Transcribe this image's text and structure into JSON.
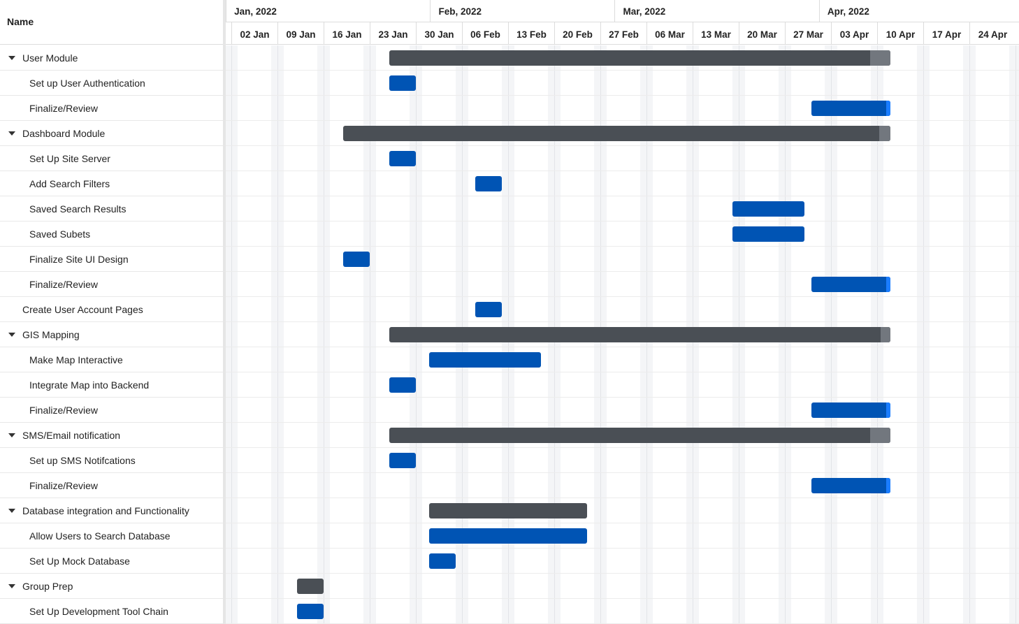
{
  "tree": {
    "header": "Name",
    "rows": [
      {
        "label": "User Module",
        "level": 0,
        "collapsible": true
      },
      {
        "label": "Set up User Authentication",
        "level": 1
      },
      {
        "label": "Finalize/Review",
        "level": 1
      },
      {
        "label": "Dashboard Module",
        "level": 0,
        "collapsible": true
      },
      {
        "label": "Set Up Site Server",
        "level": 1
      },
      {
        "label": "Add Search Filters",
        "level": 1
      },
      {
        "label": "Saved Search Results",
        "level": 1
      },
      {
        "label": "Saved Subets",
        "level": 1
      },
      {
        "label": "Finalize Site UI Design",
        "level": 1
      },
      {
        "label": "Finalize/Review",
        "level": 1
      },
      {
        "label": "Create User Account Pages",
        "level": 0,
        "collapsible": false
      },
      {
        "label": "GIS Mapping",
        "level": 0,
        "collapsible": true
      },
      {
        "label": "Make Map Interactive",
        "level": 1
      },
      {
        "label": "Integrate Map into Backend",
        "level": 1
      },
      {
        "label": "Finalize/Review",
        "level": 1
      },
      {
        "label": "SMS/Email notification",
        "level": 0,
        "collapsible": true
      },
      {
        "label": "Set up SMS Notifcations",
        "level": 1
      },
      {
        "label": "Finalize/Review",
        "level": 1
      },
      {
        "label": "Database integration and Functionality",
        "level": 0,
        "collapsible": true
      },
      {
        "label": "Allow Users to Search Database",
        "level": 1
      },
      {
        "label": "Set Up Mock Database",
        "level": 1
      },
      {
        "label": "Group Prep",
        "level": 0,
        "collapsible": true
      },
      {
        "label": "Set Up Development Tool Chain",
        "level": 1
      }
    ]
  },
  "timeline": {
    "months": [
      {
        "label": "Jan, 2022",
        "from_week": -0.12,
        "to_week": 4.31
      },
      {
        "label": "Feb, 2022",
        "from_week": 4.31,
        "to_week": 8.31
      },
      {
        "label": "Mar, 2022",
        "from_week": 8.31,
        "to_week": 12.74
      },
      {
        "label": "Apr, 2022",
        "from_week": 12.74,
        "to_week": 17.5
      }
    ],
    "weeks": [
      "02 Jan",
      "09 Jan",
      "16 Jan",
      "23 Jan",
      "30 Jan",
      "06 Feb",
      "13 Feb",
      "20 Feb",
      "27 Feb",
      "06 Mar",
      "13 Mar",
      "20 Mar",
      "27 Mar",
      "03 Apr",
      "10 Apr",
      "17 Apr",
      "24 Apr"
    ]
  },
  "bars": [
    {
      "row": 0,
      "type": "group",
      "start": "2022-01-26",
      "end": "2022-04-12",
      "progress": 0.96
    },
    {
      "row": 1,
      "type": "task",
      "start": "2022-01-26",
      "end": "2022-01-30",
      "progress": 1
    },
    {
      "row": 2,
      "type": "task",
      "start": "2022-03-31",
      "end": "2022-04-12",
      "progress": 0.95
    },
    {
      "row": 3,
      "type": "group",
      "start": "2022-01-19",
      "end": "2022-04-12",
      "progress": 0.98
    },
    {
      "row": 4,
      "type": "task",
      "start": "2022-01-26",
      "end": "2022-01-30",
      "progress": 1
    },
    {
      "row": 5,
      "type": "task",
      "start": "2022-02-08",
      "end": "2022-02-12",
      "progress": 1
    },
    {
      "row": 6,
      "type": "task",
      "start": "2022-03-19",
      "end": "2022-03-30",
      "progress": 1
    },
    {
      "row": 7,
      "type": "task",
      "start": "2022-03-19",
      "end": "2022-03-30",
      "progress": 1
    },
    {
      "row": 8,
      "type": "task",
      "start": "2022-01-19",
      "end": "2022-01-23",
      "progress": 1
    },
    {
      "row": 9,
      "type": "task",
      "start": "2022-03-31",
      "end": "2022-04-12",
      "progress": 0.95
    },
    {
      "row": 10,
      "type": "task",
      "start": "2022-02-08",
      "end": "2022-02-12",
      "progress": 1
    },
    {
      "row": 11,
      "type": "group",
      "start": "2022-01-26",
      "end": "2022-04-12",
      "progress": 0.98
    },
    {
      "row": 12,
      "type": "task",
      "start": "2022-02-01",
      "end": "2022-02-18",
      "progress": 1
    },
    {
      "row": 13,
      "type": "task",
      "start": "2022-01-26",
      "end": "2022-01-30",
      "progress": 1
    },
    {
      "row": 14,
      "type": "task",
      "start": "2022-03-31",
      "end": "2022-04-12",
      "progress": 0.95
    },
    {
      "row": 15,
      "type": "group",
      "start": "2022-01-26",
      "end": "2022-04-12",
      "progress": 0.96
    },
    {
      "row": 16,
      "type": "task",
      "start": "2022-01-26",
      "end": "2022-01-30",
      "progress": 1
    },
    {
      "row": 17,
      "type": "task",
      "start": "2022-03-31",
      "end": "2022-04-12",
      "progress": 0.95
    },
    {
      "row": 18,
      "type": "group",
      "start": "2022-02-01",
      "end": "2022-02-25",
      "progress": 1
    },
    {
      "row": 19,
      "type": "task",
      "start": "2022-02-01",
      "end": "2022-02-25",
      "progress": 1
    },
    {
      "row": 20,
      "type": "task",
      "start": "2022-02-01",
      "end": "2022-02-05",
      "progress": 1
    },
    {
      "row": 21,
      "type": "group",
      "start": "2022-01-12",
      "end": "2022-01-16",
      "progress": 1
    },
    {
      "row": 22,
      "type": "task",
      "start": "2022-01-12",
      "end": "2022-01-16",
      "progress": 1
    }
  ]
}
